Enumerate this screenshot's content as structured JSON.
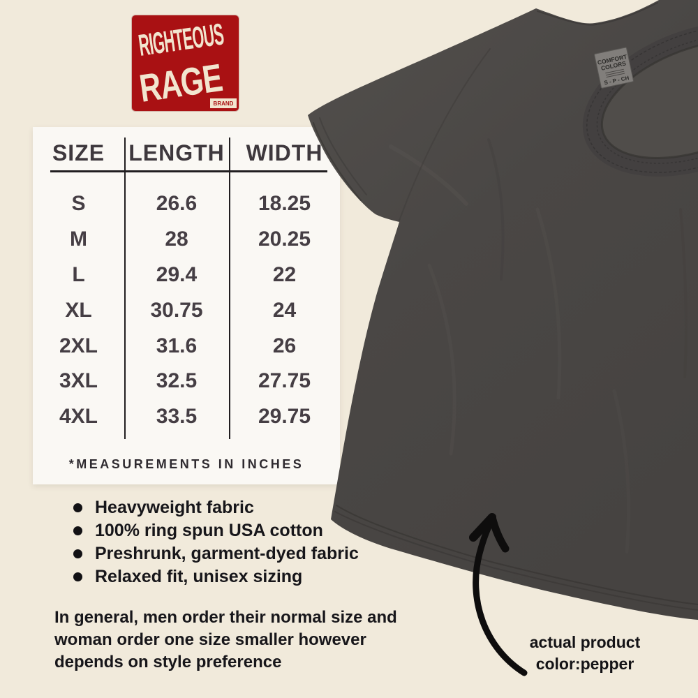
{
  "colors": {
    "background": "#f1eadb",
    "panel": "#faf8f4",
    "table_line": "#211e20",
    "table_text": "#453e44",
    "body_text": "#17161a",
    "logo_red": "#a91113",
    "logo_cream": "#f2e5cf",
    "shirt_gray": "#4a4745"
  },
  "brand_logo": {
    "word1": "RIGHTEOUS",
    "word2": "RAGE",
    "word3": "BRAND"
  },
  "size_chart": {
    "headers": [
      "SIZE",
      "LENGTH",
      "WIDTH"
    ],
    "rows": [
      [
        "S",
        "26.6",
        "18.25"
      ],
      [
        "M",
        "28",
        "20.25"
      ],
      [
        "L",
        "29.4",
        "22"
      ],
      [
        "XL",
        "30.75",
        "24"
      ],
      [
        "2XL",
        "31.6",
        "26"
      ],
      [
        "3XL",
        "32.5",
        "27.75"
      ],
      [
        "4XL",
        "33.5",
        "29.75"
      ]
    ],
    "footnote": "*MEASUREMENTS IN INCHES"
  },
  "features": [
    "Heavyweight fabric",
    "100% ring spun USA cotton",
    "Preshrunk, garment-dyed fabric",
    "Relaxed fit, unisex sizing"
  ],
  "sizing_note_lines": [
    "In general, men order their normal size and",
    "woman order one size smaller however",
    "depends on style preference"
  ],
  "product_photo": {
    "neck_label_line1": "COMFORT",
    "neck_label_line2": "COLORS",
    "neck_label_sizes": "S - P - CH"
  },
  "color_note": {
    "line1": "actual product",
    "line2": "color:pepper"
  }
}
